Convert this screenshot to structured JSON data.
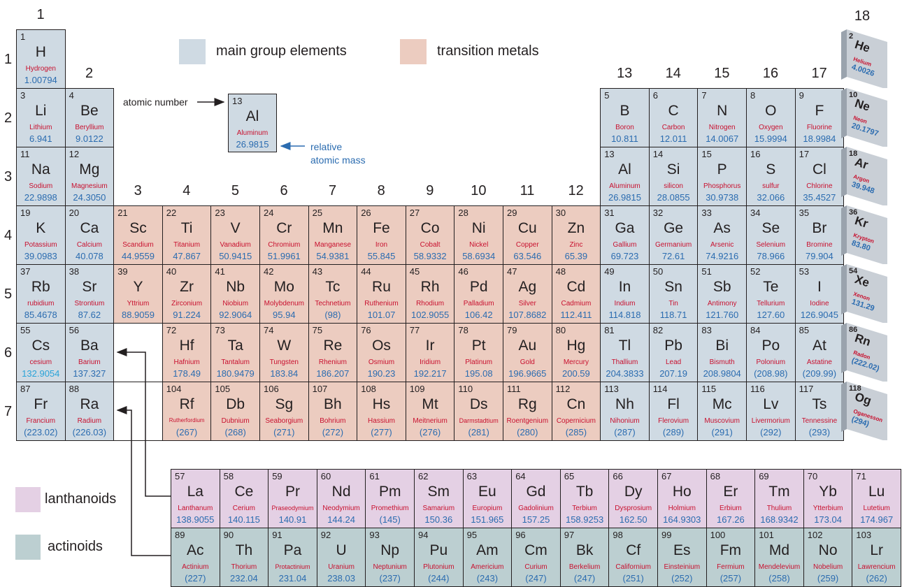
{
  "colors": {
    "main_group": "#cfdae3",
    "transition": "#ecccc0",
    "lanthanoid": "#e4d0e4",
    "actinoid": "#bccfd1",
    "name_red": "#c8102e",
    "mass_blue": "#2b6cb0",
    "noble_face": "#c9cfd6",
    "noble_side": "#9aa3ad"
  },
  "group_labels": [
    "1",
    "2",
    "3",
    "4",
    "5",
    "6",
    "7",
    "8",
    "9",
    "10",
    "11",
    "12",
    "13",
    "14",
    "15",
    "16",
    "17",
    "18"
  ],
  "period_labels": [
    "1",
    "2",
    "3",
    "4",
    "5",
    "6",
    "7"
  ],
  "legend": {
    "main_group": "main group elements",
    "transition": "transition metals",
    "lanthanoids": "lanthanoids",
    "actinoids": "actinoids"
  },
  "sample": {
    "atomic_number_label": "atomic number",
    "relative_mass_label_1": "relative",
    "relative_mass_label_2": "atomic mass",
    "num": "13",
    "sym": "Al",
    "name": "Aluminum",
    "mass": "26.9815"
  },
  "elements": [
    {
      "num": "1",
      "sym": "H",
      "name": "Hydrogen",
      "mass": "1.00794",
      "g": 1,
      "p": 1,
      "cat": "main"
    },
    {
      "num": "3",
      "sym": "Li",
      "name": "Lithium",
      "mass": "6.941",
      "g": 1,
      "p": 2,
      "cat": "main"
    },
    {
      "num": "4",
      "sym": "Be",
      "name": "Beryllium",
      "mass": "9.0122",
      "g": 2,
      "p": 2,
      "cat": "main"
    },
    {
      "num": "5",
      "sym": "B",
      "name": "Boron",
      "mass": "10.811",
      "g": 13,
      "p": 2,
      "cat": "main"
    },
    {
      "num": "6",
      "sym": "C",
      "name": "Carbon",
      "mass": "12.011",
      "g": 14,
      "p": 2,
      "cat": "main"
    },
    {
      "num": "7",
      "sym": "N",
      "name": "Nitrogen",
      "mass": "14.0067",
      "g": 15,
      "p": 2,
      "cat": "main"
    },
    {
      "num": "8",
      "sym": "O",
      "name": "Oxygen",
      "mass": "15.9994",
      "g": 16,
      "p": 2,
      "cat": "main"
    },
    {
      "num": "9",
      "sym": "F",
      "name": "Fluorine",
      "mass": "18.9984",
      "g": 17,
      "p": 2,
      "cat": "main"
    },
    {
      "num": "11",
      "sym": "Na",
      "name": "Sodium",
      "mass": "22.9898",
      "g": 1,
      "p": 3,
      "cat": "main"
    },
    {
      "num": "12",
      "sym": "Mg",
      "name": "Magnesium",
      "mass": "24.3050",
      "g": 2,
      "p": 3,
      "cat": "main"
    },
    {
      "num": "13",
      "sym": "Al",
      "name": "Aluminum",
      "mass": "26.9815",
      "g": 13,
      "p": 3,
      "cat": "main"
    },
    {
      "num": "14",
      "sym": "Si",
      "name": "silicon",
      "mass": "28.0855",
      "g": 14,
      "p": 3,
      "cat": "main"
    },
    {
      "num": "15",
      "sym": "P",
      "name": "Phosphorus",
      "mass": "30.9738",
      "g": 15,
      "p": 3,
      "cat": "main"
    },
    {
      "num": "16",
      "sym": "S",
      "name": "sulfur",
      "mass": "32.066",
      "g": 16,
      "p": 3,
      "cat": "main"
    },
    {
      "num": "17",
      "sym": "Cl",
      "name": "Chlorine",
      "mass": "35.4527",
      "g": 17,
      "p": 3,
      "cat": "main"
    },
    {
      "num": "19",
      "sym": "K",
      "name": "Potassium",
      "mass": "39.0983",
      "g": 1,
      "p": 4,
      "cat": "main"
    },
    {
      "num": "20",
      "sym": "Ca",
      "name": "Calcium",
      "mass": "40.078",
      "g": 2,
      "p": 4,
      "cat": "main"
    },
    {
      "num": "21",
      "sym": "Sc",
      "name": "Scandium",
      "mass": "44.9559",
      "g": 3,
      "p": 4,
      "cat": "trans"
    },
    {
      "num": "22",
      "sym": "Ti",
      "name": "Titanium",
      "mass": "47.867",
      "g": 4,
      "p": 4,
      "cat": "trans"
    },
    {
      "num": "23",
      "sym": "V",
      "name": "Vanadium",
      "mass": "50.9415",
      "g": 5,
      "p": 4,
      "cat": "trans"
    },
    {
      "num": "24",
      "sym": "Cr",
      "name": "Chromium",
      "mass": "51.9961",
      "g": 6,
      "p": 4,
      "cat": "trans"
    },
    {
      "num": "25",
      "sym": "Mn",
      "name": "Manganese",
      "mass": "54.9381",
      "g": 7,
      "p": 4,
      "cat": "trans"
    },
    {
      "num": "26",
      "sym": "Fe",
      "name": "Iron",
      "mass": "55.845",
      "g": 8,
      "p": 4,
      "cat": "trans"
    },
    {
      "num": "27",
      "sym": "Co",
      "name": "Cobalt",
      "mass": "58.9332",
      "g": 9,
      "p": 4,
      "cat": "trans"
    },
    {
      "num": "28",
      "sym": "Ni",
      "name": "Nickel",
      "mass": "58.6934",
      "g": 10,
      "p": 4,
      "cat": "trans"
    },
    {
      "num": "29",
      "sym": "Cu",
      "name": "Copper",
      "mass": "63.546",
      "g": 11,
      "p": 4,
      "cat": "trans"
    },
    {
      "num": "30",
      "sym": "Zn",
      "name": "Zinc",
      "mass": "65.39",
      "g": 12,
      "p": 4,
      "cat": "trans"
    },
    {
      "num": "31",
      "sym": "Ga",
      "name": "Gallium",
      "mass": "69.723",
      "g": 13,
      "p": 4,
      "cat": "main"
    },
    {
      "num": "32",
      "sym": "Ge",
      "name": "Germanium",
      "mass": "72.61",
      "g": 14,
      "p": 4,
      "cat": "main"
    },
    {
      "num": "33",
      "sym": "As",
      "name": "Arsenic",
      "mass": "74.9216",
      "g": 15,
      "p": 4,
      "cat": "main"
    },
    {
      "num": "34",
      "sym": "Se",
      "name": "Selenium",
      "mass": "78.966",
      "g": 16,
      "p": 4,
      "cat": "main"
    },
    {
      "num": "35",
      "sym": "Br",
      "name": "Bromine",
      "mass": "79.904",
      "g": 17,
      "p": 4,
      "cat": "main"
    },
    {
      "num": "37",
      "sym": "Rb",
      "name": "rubidium",
      "mass": "85.4678",
      "g": 1,
      "p": 5,
      "cat": "main"
    },
    {
      "num": "38",
      "sym": "Sr",
      "name": "Strontium",
      "mass": "87.62",
      "g": 2,
      "p": 5,
      "cat": "main"
    },
    {
      "num": "39",
      "sym": "Y",
      "name": "Yttrium",
      "mass": "88.9059",
      "g": 3,
      "p": 5,
      "cat": "trans"
    },
    {
      "num": "40",
      "sym": "Zr",
      "name": "Zirconium",
      "mass": "91.224",
      "g": 4,
      "p": 5,
      "cat": "trans"
    },
    {
      "num": "41",
      "sym": "Nb",
      "name": "Niobium",
      "mass": "92.9064",
      "g": 5,
      "p": 5,
      "cat": "trans"
    },
    {
      "num": "42",
      "sym": "Mo",
      "name": "Molybdenum",
      "mass": "95.94",
      "g": 6,
      "p": 5,
      "cat": "trans"
    },
    {
      "num": "43",
      "sym": "Tc",
      "name": "Technetium",
      "mass": "(98)",
      "g": 7,
      "p": 5,
      "cat": "trans"
    },
    {
      "num": "44",
      "sym": "Ru",
      "name": "Ruthenium",
      "mass": "101.07",
      "g": 8,
      "p": 5,
      "cat": "trans"
    },
    {
      "num": "45",
      "sym": "Rh",
      "name": "Rhodium",
      "mass": "102.9055",
      "g": 9,
      "p": 5,
      "cat": "trans"
    },
    {
      "num": "46",
      "sym": "Pd",
      "name": "Palladium",
      "mass": "106.42",
      "g": 10,
      "p": 5,
      "cat": "trans"
    },
    {
      "num": "47",
      "sym": "Ag",
      "name": "Silver",
      "mass": "107.8682",
      "g": 11,
      "p": 5,
      "cat": "trans"
    },
    {
      "num": "48",
      "sym": "Cd",
      "name": "Cadmium",
      "mass": "112.411",
      "g": 12,
      "p": 5,
      "cat": "trans"
    },
    {
      "num": "49",
      "sym": "In",
      "name": "Indium",
      "mass": "114.818",
      "g": 13,
      "p": 5,
      "cat": "main"
    },
    {
      "num": "50",
      "sym": "Sn",
      "name": "Tin",
      "mass": "118.71",
      "g": 14,
      "p": 5,
      "cat": "main"
    },
    {
      "num": "51",
      "sym": "Sb",
      "name": "Antimony",
      "mass": "121.760",
      "g": 15,
      "p": 5,
      "cat": "main"
    },
    {
      "num": "52",
      "sym": "Te",
      "name": "Tellurium",
      "mass": "127.60",
      "g": 16,
      "p": 5,
      "cat": "main"
    },
    {
      "num": "53",
      "sym": "I",
      "name": "Iodine",
      "mass": "126.9045",
      "g": 17,
      "p": 5,
      "cat": "main"
    },
    {
      "num": "55",
      "sym": "Cs",
      "name": "cesium",
      "mass": "132.9054",
      "g": 1,
      "p": 6,
      "cat": "main"
    },
    {
      "num": "56",
      "sym": "Ba",
      "name": "Barium",
      "mass": "137.327",
      "g": 2,
      "p": 6,
      "cat": "main"
    },
    {
      "num": "72",
      "sym": "Hf",
      "name": "Hafnium",
      "mass": "178.49",
      "g": 4,
      "p": 6,
      "cat": "trans"
    },
    {
      "num": "73",
      "sym": "Ta",
      "name": "Tantalum",
      "mass": "180.9479",
      "g": 5,
      "p": 6,
      "cat": "trans"
    },
    {
      "num": "74",
      "sym": "W",
      "name": "Tungsten",
      "mass": "183.84",
      "g": 6,
      "p": 6,
      "cat": "trans"
    },
    {
      "num": "75",
      "sym": "Re",
      "name": "Rhenium",
      "mass": "186.207",
      "g": 7,
      "p": 6,
      "cat": "trans"
    },
    {
      "num": "76",
      "sym": "Os",
      "name": "Osmium",
      "mass": "190.23",
      "g": 8,
      "p": 6,
      "cat": "trans"
    },
    {
      "num": "77",
      "sym": "Ir",
      "name": "Iridium",
      "mass": "192.217",
      "g": 9,
      "p": 6,
      "cat": "trans"
    },
    {
      "num": "78",
      "sym": "Pt",
      "name": "Platinum",
      "mass": "195.08",
      "g": 10,
      "p": 6,
      "cat": "trans"
    },
    {
      "num": "79",
      "sym": "Au",
      "name": "Gold",
      "mass": "196.9665",
      "g": 11,
      "p": 6,
      "cat": "trans"
    },
    {
      "num": "80",
      "sym": "Hg",
      "name": "Mercury",
      "mass": "200.59",
      "g": 12,
      "p": 6,
      "cat": "trans"
    },
    {
      "num": "81",
      "sym": "Tl",
      "name": "Thallium",
      "mass": "204.3833",
      "g": 13,
      "p": 6,
      "cat": "main"
    },
    {
      "num": "82",
      "sym": "Pb",
      "name": "Lead",
      "mass": "207.19",
      "g": 14,
      "p": 6,
      "cat": "main"
    },
    {
      "num": "83",
      "sym": "Bi",
      "name": "Bismuth",
      "mass": "208.9804",
      "g": 15,
      "p": 6,
      "cat": "main"
    },
    {
      "num": "84",
      "sym": "Po",
      "name": "Polonium",
      "mass": "(208.98)",
      "g": 16,
      "p": 6,
      "cat": "main"
    },
    {
      "num": "85",
      "sym": "At",
      "name": "Astatine",
      "mass": "(209.99)",
      "g": 17,
      "p": 6,
      "cat": "main"
    },
    {
      "num": "87",
      "sym": "Fr",
      "name": "Francium",
      "mass": "(223.02)",
      "g": 1,
      "p": 7,
      "cat": "main"
    },
    {
      "num": "88",
      "sym": "Ra",
      "name": "Radium",
      "mass": "(226.03)",
      "g": 2,
      "p": 7,
      "cat": "main"
    },
    {
      "num": "104",
      "sym": "Rf",
      "name": "Rutherfordium",
      "mass": "(267)",
      "g": 4,
      "p": 7,
      "cat": "trans"
    },
    {
      "num": "105",
      "sym": "Db",
      "name": "Dubnium",
      "mass": "(268)",
      "g": 5,
      "p": 7,
      "cat": "trans"
    },
    {
      "num": "106",
      "sym": "Sg",
      "name": "Seaborgium",
      "mass": "(271)",
      "g": 6,
      "p": 7,
      "cat": "trans"
    },
    {
      "num": "107",
      "sym": "Bh",
      "name": "Bohrium",
      "mass": "(272)",
      "g": 7,
      "p": 7,
      "cat": "trans"
    },
    {
      "num": "108",
      "sym": "Hs",
      "name": "Hassium",
      "mass": "(277)",
      "g": 8,
      "p": 7,
      "cat": "trans"
    },
    {
      "num": "109",
      "sym": "Mt",
      "name": "Meitnerium",
      "mass": "(276)",
      "g": 9,
      "p": 7,
      "cat": "trans"
    },
    {
      "num": "110",
      "sym": "Ds",
      "name": "Darmstadtium",
      "mass": "(281)",
      "g": 10,
      "p": 7,
      "cat": "trans"
    },
    {
      "num": "111",
      "sym": "Rg",
      "name": "Roentgenium",
      "mass": "(280)",
      "g": 11,
      "p": 7,
      "cat": "trans"
    },
    {
      "num": "112",
      "sym": "Cn",
      "name": "Copernicium",
      "mass": "(285)",
      "g": 12,
      "p": 7,
      "cat": "trans"
    },
    {
      "num": "113",
      "sym": "Nh",
      "name": "Nihonium",
      "mass": "(287)",
      "g": 13,
      "p": 7,
      "cat": "main"
    },
    {
      "num": "114",
      "sym": "Fl",
      "name": "Flerovium",
      "mass": "(289)",
      "g": 14,
      "p": 7,
      "cat": "main"
    },
    {
      "num": "115",
      "sym": "Mc",
      "name": "Muscovium",
      "mass": "(291)",
      "g": 15,
      "p": 7,
      "cat": "main"
    },
    {
      "num": "116",
      "sym": "Lv",
      "name": "Livermorium",
      "mass": "(292)",
      "g": 16,
      "p": 7,
      "cat": "main"
    },
    {
      "num": "117",
      "sym": "Ts",
      "name": "Tennessine",
      "mass": "(293)",
      "g": 17,
      "p": 7,
      "cat": "main"
    }
  ],
  "lanthanoids": [
    {
      "num": "57",
      "sym": "La",
      "name": "Lanthanum",
      "mass": "138.9055"
    },
    {
      "num": "58",
      "sym": "Ce",
      "name": "Cerium",
      "mass": "140.115"
    },
    {
      "num": "59",
      "sym": "Pr",
      "name": "Praseodymium",
      "mass": "140.91"
    },
    {
      "num": "60",
      "sym": "Nd",
      "name": "Neodymium",
      "mass": "144.24"
    },
    {
      "num": "61",
      "sym": "Pm",
      "name": "Promethium",
      "mass": "(145)"
    },
    {
      "num": "62",
      "sym": "Sm",
      "name": "Samarium",
      "mass": "150.36"
    },
    {
      "num": "63",
      "sym": "Eu",
      "name": "Europium",
      "mass": "151.965"
    },
    {
      "num": "64",
      "sym": "Gd",
      "name": "Gadolinium",
      "mass": "157.25"
    },
    {
      "num": "65",
      "sym": "Tb",
      "name": "Terbium",
      "mass": "158.9253"
    },
    {
      "num": "66",
      "sym": "Dy",
      "name": "Dysprosium",
      "mass": "162.50"
    },
    {
      "num": "67",
      "sym": "Ho",
      "name": "Holmium",
      "mass": "164.9303"
    },
    {
      "num": "68",
      "sym": "Er",
      "name": "Erbium",
      "mass": "167.26"
    },
    {
      "num": "69",
      "sym": "Tm",
      "name": "Thulium",
      "mass": "168.9342"
    },
    {
      "num": "70",
      "sym": "Yb",
      "name": "Ytterbium",
      "mass": "173.04"
    },
    {
      "num": "71",
      "sym": "Lu",
      "name": "Lutetium",
      "mass": "174.967"
    }
  ],
  "actinoids": [
    {
      "num": "89",
      "sym": "Ac",
      "name": "Actinium",
      "mass": "(227)"
    },
    {
      "num": "90",
      "sym": "Th",
      "name": "Thorium",
      "mass": "232.04"
    },
    {
      "num": "91",
      "sym": "Pa",
      "name": "Protactinium",
      "mass": "231.04"
    },
    {
      "num": "92",
      "sym": "U",
      "name": "Uranium",
      "mass": "238.03"
    },
    {
      "num": "93",
      "sym": "Np",
      "name": "Neptunium",
      "mass": "(237)"
    },
    {
      "num": "94",
      "sym": "Pu",
      "name": "Plutonium",
      "mass": "(244)"
    },
    {
      "num": "95",
      "sym": "Am",
      "name": "Americium",
      "mass": "(243)"
    },
    {
      "num": "96",
      "sym": "Cm",
      "name": "Curium",
      "mass": "(247)"
    },
    {
      "num": "97",
      "sym": "Bk",
      "name": "Berkelium",
      "mass": "(247)"
    },
    {
      "num": "98",
      "sym": "Cf",
      "name": "Californium",
      "mass": "(251)"
    },
    {
      "num": "99",
      "sym": "Es",
      "name": "Einsteinium",
      "mass": "(252)"
    },
    {
      "num": "100",
      "sym": "Fm",
      "name": "Fermium",
      "mass": "(257)"
    },
    {
      "num": "101",
      "sym": "Md",
      "name": "Mendelevium",
      "mass": "(258)"
    },
    {
      "num": "102",
      "sym": "No",
      "name": "Nobelium",
      "mass": "(259)"
    },
    {
      "num": "103",
      "sym": "Lr",
      "name": "Lawrencium",
      "mass": "(262)"
    }
  ],
  "noble_gases": [
    {
      "num": "2",
      "sym": "He",
      "name": "Helium",
      "mass": "4.0026"
    },
    {
      "num": "10",
      "sym": "Ne",
      "name": "Neon",
      "mass": "20.1797"
    },
    {
      "num": "18",
      "sym": "Ar",
      "name": "Argon",
      "mass": "39.948"
    },
    {
      "num": "36",
      "sym": "Kr",
      "name": "Krypton",
      "mass": "83.80"
    },
    {
      "num": "54",
      "sym": "Xe",
      "name": "Xenon",
      "mass": "131.29"
    },
    {
      "num": "86",
      "sym": "Rn",
      "name": "Radon",
      "mass": "(222.02)"
    },
    {
      "num": "118",
      "sym": "Og",
      "name": "Oganesson",
      "mass": "(294)"
    }
  ]
}
